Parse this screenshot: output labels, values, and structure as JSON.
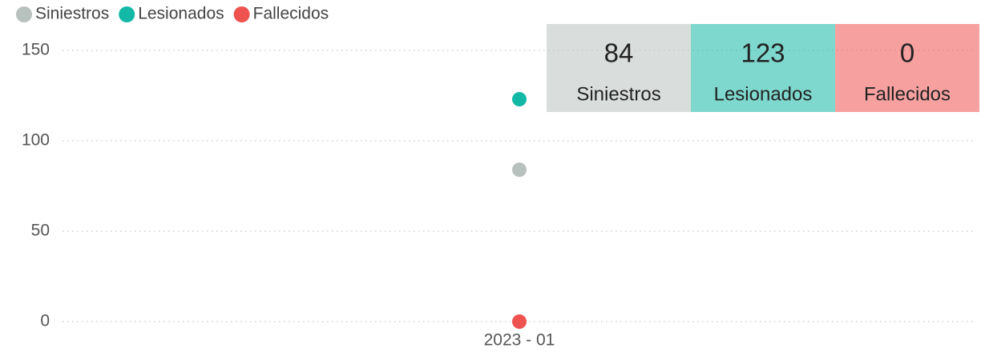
{
  "chart_data": {
    "type": "line",
    "categories": [
      "2023 - 01"
    ],
    "series": [
      {
        "name": "Siniestros",
        "color": "#b9c1be",
        "values": [
          84
        ]
      },
      {
        "name": "Lesionados",
        "color": "#14b8a6",
        "values": [
          123
        ]
      },
      {
        "name": "Fallecidos",
        "color": "#ef5350",
        "values": [
          0
        ]
      }
    ],
    "ylim": [
      0,
      150
    ],
    "yticks": [
      0,
      50,
      100,
      150
    ],
    "grid": true,
    "legend": "top-left"
  }
}
